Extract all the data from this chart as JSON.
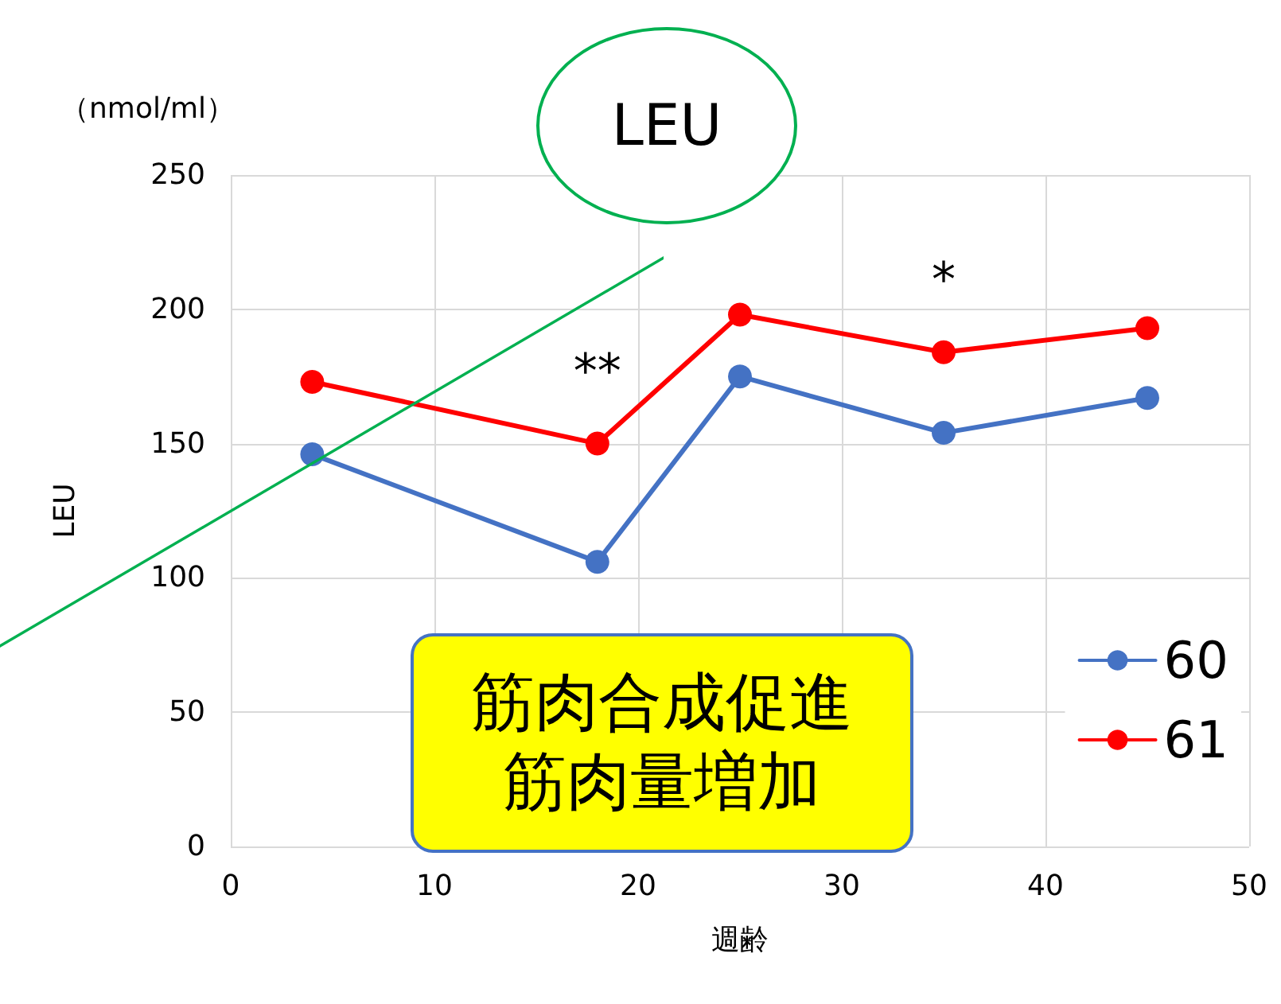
{
  "chart_data": {
    "type": "line",
    "xlabel": "週齢",
    "ylabel": "LEU",
    "x": [
      4,
      18,
      25,
      35,
      45
    ],
    "series": [
      {
        "name": "60",
        "color": "#4472c4",
        "values": [
          146,
          106,
          175,
          154,
          167
        ]
      },
      {
        "name": "61",
        "color": "#ff0000",
        "values": [
          173,
          150,
          198,
          184,
          193
        ]
      }
    ],
    "xlim": [
      0,
      50
    ],
    "xticks": [
      0,
      10,
      20,
      30,
      40,
      50
    ],
    "ylim": [
      0,
      250
    ],
    "yticks": [
      0,
      50,
      100,
      150,
      200,
      250
    ],
    "grid": true,
    "legend": "right",
    "marker": "circle",
    "line_style": "solid",
    "annotations": [
      "（nmol/ml）",
      "LEU",
      "筋肉合成促進",
      "筋肉量増加",
      {
        "text": "**",
        "x": 18,
        "y": 150
      },
      {
        "text": "*",
        "x": 35,
        "y": 184
      }
    ]
  }
}
